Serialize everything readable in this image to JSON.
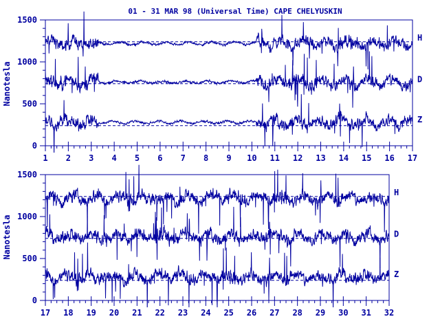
{
  "title": "01 - 31 MAR 98 (Universal Time) CAPE CHELYUSKIN",
  "ylabel": "Nanotesla",
  "colors": {
    "trace": "#0000a0",
    "axis": "#0000a0",
    "background": "#ffffff"
  },
  "chart_data": [
    {
      "type": "line",
      "panel": "top",
      "x_ticks": [
        "1",
        "2",
        "3",
        "4",
        "5",
        "6",
        "7",
        "8",
        "9",
        "10",
        "11",
        "12",
        "13",
        "14",
        "15",
        "16",
        "17"
      ],
      "xlim": [
        1,
        17
      ],
      "y_ticks": [
        "0",
        "500",
        "1000",
        "1500"
      ],
      "ylim": [
        0,
        1500
      ],
      "reference_lines": [
        1240,
        740,
        240
      ],
      "series": [
        {
          "name": "H",
          "baseline": 1220
        },
        {
          "name": "D",
          "baseline": 760
        },
        {
          "name": "Z",
          "baseline": 280
        }
      ],
      "disturbed_days": [
        [
          1,
          3.3
        ],
        [
          10.2,
          17
        ]
      ],
      "grid": false
    },
    {
      "type": "line",
      "panel": "bottom",
      "x_ticks": [
        "17",
        "18",
        "19",
        "20",
        "21",
        "22",
        "23",
        "24",
        "25",
        "26",
        "27",
        "28",
        "29",
        "30",
        "31",
        "32"
      ],
      "xlim": [
        17,
        32
      ],
      "y_ticks": [
        "0",
        "500",
        "1000",
        "1500"
      ],
      "ylim": [
        0,
        1500
      ],
      "reference_lines": [
        1240,
        740,
        240
      ],
      "series": [
        {
          "name": "H",
          "baseline": 1220
        },
        {
          "name": "D",
          "baseline": 760
        },
        {
          "name": "Z",
          "baseline": 280
        }
      ],
      "disturbed_days": [
        [
          17,
          32
        ]
      ],
      "grid": false
    }
  ]
}
